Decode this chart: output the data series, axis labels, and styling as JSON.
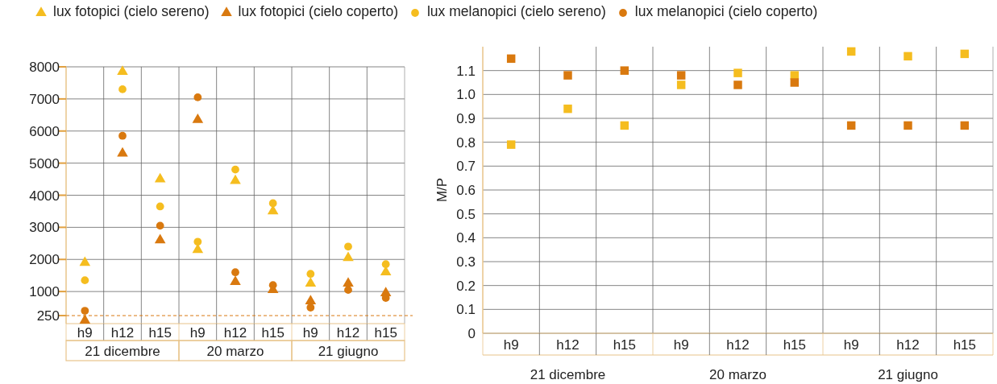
{
  "chart_data": [
    {
      "type": "scatter",
      "categories": [
        "h9",
        "h12",
        "h15",
        "h9",
        "h12",
        "h15",
        "h9",
        "h12",
        "h15"
      ],
      "annotations": [
        "21 dicembre",
        "20 marzo",
        "21 giugno"
      ],
      "ylim": [
        0,
        8000
      ],
      "yticks": [
        250,
        1000,
        2000,
        3000,
        4000,
        5000,
        6000,
        7000,
        8000
      ],
      "grid": true,
      "legend": "top",
      "ref_lines": [
        {
          "axis": "y",
          "value": 250,
          "color": "#d9790f",
          "line_style": "dashed"
        }
      ],
      "series": [
        {
          "name": "lux fotopici (cielo sereno)",
          "color": "#f5bd1f",
          "marker": "triangle",
          "values": [
            1900,
            7850,
            4500,
            2300,
            4450,
            3500,
            1250,
            2050,
            1600
          ]
        },
        {
          "name": "lux fotopici (cielo coperto)",
          "color": "#d9790f",
          "marker": "triangle",
          "values": [
            100,
            5300,
            2600,
            6350,
            1300,
            1050,
            700,
            1250,
            950
          ]
        },
        {
          "name": "lux melanopici (cielo sereno)",
          "color": "#f5bd1f",
          "marker": "circle",
          "values": [
            1350,
            7300,
            3650,
            2550,
            4800,
            3750,
            1550,
            2400,
            1850
          ]
        },
        {
          "name": "lux melanopici (cielo coperto)",
          "color": "#d9790f",
          "marker": "circle",
          "values": [
            400,
            5850,
            3050,
            7050,
            1600,
            1200,
            500,
            1050,
            800
          ]
        }
      ]
    },
    {
      "type": "scatter",
      "categories": [
        "h9",
        "h12",
        "h15",
        "h9",
        "h12",
        "h15",
        "h9",
        "h12",
        "h15"
      ],
      "annotations": [
        "21 dicembre",
        "20 marzo",
        "21 giugno"
      ],
      "ylabel": "M/P",
      "ylim": [
        0,
        1.2
      ],
      "yticks": [
        0,
        0.1,
        0.2,
        0.3,
        0.4,
        0.5,
        0.6,
        0.7,
        0.8,
        0.9,
        {
          "value": 1,
          "label": "1.0"
        },
        1.1
      ],
      "grid": true,
      "legend": false,
      "marker": "square",
      "series": [
        {
          "color": "#f5bd1f",
          "values": [
            0.79,
            0.94,
            0.87,
            1.04,
            1.09,
            1.08,
            1.18,
            1.16,
            1.17
          ]
        },
        {
          "color": "#d9790f",
          "values": [
            1.15,
            1.08,
            1.1,
            1.08,
            1.04,
            1.05,
            0.87,
            0.87,
            0.87
          ]
        }
      ]
    }
  ]
}
